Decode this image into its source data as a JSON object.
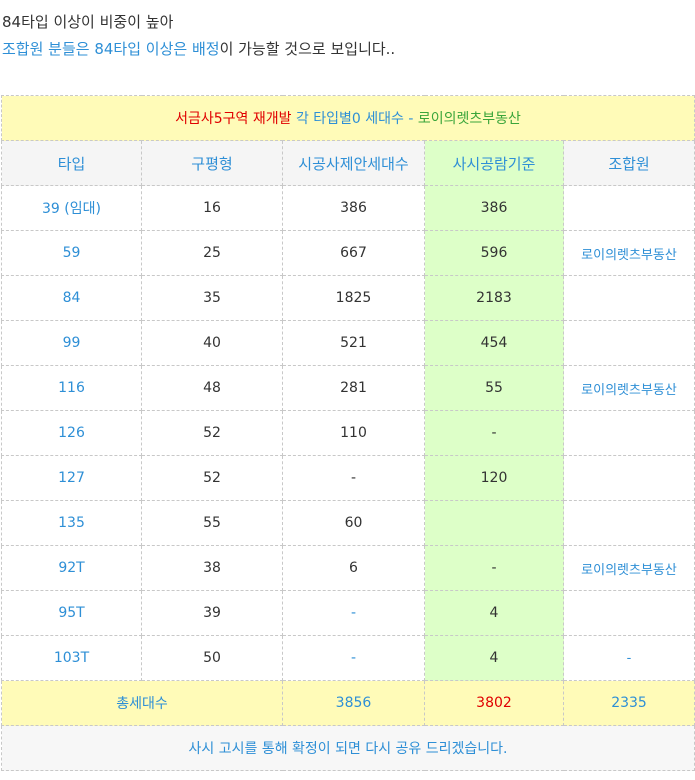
{
  "intro": {
    "line1": "84타입 이상이 비중이 높아",
    "line2_part1": "조합원 분들은 84타입 이상은 배정",
    "line2_part2": "이 가능할 것으로 보입니다.."
  },
  "table": {
    "title_part1": "서금사5구역 재개발",
    "title_part2": " 각 타입별0 세대수 - ",
    "title_part3": "로이의렛츠부동산",
    "headers": [
      "타입",
      "구평형",
      "시공사제안세대수",
      "사시공람기준",
      "조합원"
    ],
    "rows": [
      {
        "type": "39 (임대)",
        "pyeong": "16",
        "proposal": "386",
        "public": "386",
        "member": ""
      },
      {
        "type": "59",
        "pyeong": "25",
        "proposal": "667",
        "public": "596",
        "member": "로이의렛츠부동산"
      },
      {
        "type": "84",
        "pyeong": "35",
        "proposal": "1825",
        "public": "2183",
        "member": ""
      },
      {
        "type": "99",
        "pyeong": "40",
        "proposal": "521",
        "public": "454",
        "member": ""
      },
      {
        "type": "116",
        "pyeong": "48",
        "proposal": "281",
        "public": "55",
        "member": "로이의렛츠부동산"
      },
      {
        "type": "126",
        "pyeong": "52",
        "proposal": "110",
        "public": "-",
        "member": ""
      },
      {
        "type": "127",
        "pyeong": "52",
        "proposal": "-",
        "public": "120",
        "member": ""
      },
      {
        "type": "135",
        "pyeong": "55",
        "proposal": "60",
        "public": "",
        "member": ""
      },
      {
        "type": "92T",
        "pyeong": "38",
        "proposal": "6",
        "public": "-",
        "member": "로이의렛츠부동산"
      },
      {
        "type": "95T",
        "pyeong": "39",
        "proposal": "-",
        "public": "4",
        "member": ""
      },
      {
        "type": "103T",
        "pyeong": "50",
        "proposal": "-",
        "public": "4",
        "member": "-"
      }
    ],
    "total": {
      "label": "총세대수",
      "proposal": "3856",
      "public": "3802",
      "member": "2335"
    },
    "footer": "사시 고시를 통해 확정이 되면 다시 공유 드리겠습니다."
  }
}
